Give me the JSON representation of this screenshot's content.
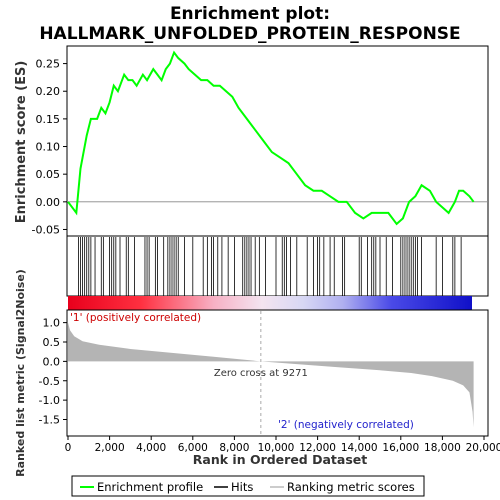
{
  "chart_data": {
    "type": "line",
    "title_line1": "Enrichment plot:",
    "title_line2": "HALLMARK_UNFOLDED_PROTEIN_RESPONSE",
    "es_panel": {
      "ylabel": "Enrichment score (ES)",
      "ylim": [
        -0.06,
        0.28
      ],
      "yticks": [
        -0.05,
        0.0,
        0.05,
        0.1,
        0.15,
        0.2,
        0.25
      ],
      "ytick_labels": [
        "-0.05",
        "0.00",
        "0.05",
        "0.10",
        "0.15",
        "0.20",
        "0.25"
      ],
      "x": [
        0,
        400,
        600,
        900,
        1100,
        1400,
        1600,
        1800,
        2000,
        2200,
        2400,
        2700,
        2900,
        3100,
        3300,
        3600,
        3800,
        4100,
        4300,
        4500,
        4700,
        4900,
        5100,
        5300,
        5600,
        5800,
        6100,
        6400,
        6700,
        7000,
        7300,
        7600,
        7900,
        8200,
        8600,
        9000,
        9400,
        9800,
        10200,
        10600,
        11000,
        11400,
        11800,
        12200,
        12600,
        13000,
        13400,
        13800,
        14200,
        14600,
        15000,
        15400,
        15800,
        16100,
        16400,
        16700,
        17000,
        17400,
        17700,
        18000,
        18300,
        18600,
        18800,
        19000,
        19300,
        19500
      ],
      "y": [
        0.0,
        -0.02,
        0.06,
        0.12,
        0.15,
        0.15,
        0.17,
        0.16,
        0.18,
        0.21,
        0.2,
        0.23,
        0.22,
        0.22,
        0.21,
        0.23,
        0.22,
        0.24,
        0.23,
        0.22,
        0.24,
        0.25,
        0.27,
        0.26,
        0.25,
        0.24,
        0.23,
        0.22,
        0.22,
        0.21,
        0.21,
        0.2,
        0.19,
        0.17,
        0.15,
        0.13,
        0.11,
        0.09,
        0.08,
        0.07,
        0.05,
        0.03,
        0.02,
        0.02,
        0.01,
        0.0,
        0.0,
        -0.02,
        -0.03,
        -0.02,
        -0.02,
        -0.02,
        -0.04,
        -0.03,
        0.0,
        0.01,
        0.03,
        0.02,
        0.0,
        -0.01,
        -0.02,
        0.0,
        0.02,
        0.02,
        0.01,
        0.0
      ],
      "color": "#00ff00"
    },
    "hits": [
      500,
      600,
      700,
      800,
      900,
      1000,
      1100,
      1300,
      1600,
      1700,
      2000,
      2100,
      2200,
      2300,
      2500,
      2800,
      2900,
      3200,
      3700,
      3800,
      3900,
      4200,
      4300,
      4600,
      4800,
      4900,
      5000,
      5100,
      5200,
      5300,
      5600,
      6000,
      6500,
      6700,
      6900,
      7000,
      7200,
      7400,
      7700,
      8000,
      8400,
      8500,
      8600,
      8700,
      8800,
      9000,
      9200,
      9500,
      10000,
      10300,
      10400,
      10500,
      10700,
      11000,
      11500,
      11800,
      12000,
      12100,
      12300,
      12600,
      12800,
      13200,
      13300,
      14000,
      14100,
      14400,
      14600,
      14700,
      14800,
      15000,
      15300,
      15600,
      16000,
      16100,
      16200,
      16300,
      16400,
      16500,
      16600,
      16700,
      16800,
      17000,
      17700,
      18000,
      18500,
      18600,
      18900
    ],
    "rank_panel": {
      "ylabel": "Ranked list metric (Signal2Noise)",
      "ylim": [
        -1.9,
        1.3
      ],
      "yticks": [
        -1.5,
        -1.0,
        -0.5,
        0.0,
        0.5,
        1.0
      ],
      "ytick_labels": [
        "-1.5",
        "-1.0",
        "-0.5",
        "0.0",
        "0.5",
        "1.0"
      ],
      "profile_x": [
        0,
        100,
        300,
        700,
        1500,
        3000,
        5000,
        7000,
        9271,
        11000,
        13000,
        15000,
        16500,
        17500,
        18500,
        19000,
        19300,
        19450,
        19500
      ],
      "profile_y": [
        1.0,
        0.8,
        0.65,
        0.52,
        0.43,
        0.32,
        0.22,
        0.12,
        0.0,
        -0.07,
        -0.15,
        -0.23,
        -0.3,
        -0.38,
        -0.5,
        -0.62,
        -0.8,
        -1.3,
        -1.7
      ],
      "zero_cross_label": "Zero cross at 9271",
      "zero_cross": 9271,
      "pos_label": "'1' (positively correlated)",
      "neg_label": "'2' (negatively correlated)"
    },
    "xlabel": "Rank in Ordered Dataset",
    "xlim": [
      0,
      20000
    ],
    "xticks": [
      0,
      2000,
      4000,
      6000,
      8000,
      10000,
      12000,
      14000,
      16000,
      18000,
      20000
    ],
    "xtick_labels": [
      "0",
      "2,000",
      "4,000",
      "6,000",
      "8,000",
      "10,000",
      "12,000",
      "14,000",
      "16,000",
      "18,000",
      "20,000"
    ],
    "n_genes": 19500,
    "legend": {
      "placement": "bottom",
      "items": [
        "Enrichment profile",
        "Hits",
        "Ranking metric scores"
      ],
      "colors": [
        "#00ff00",
        "#000000",
        "#bbbbbb"
      ]
    }
  }
}
